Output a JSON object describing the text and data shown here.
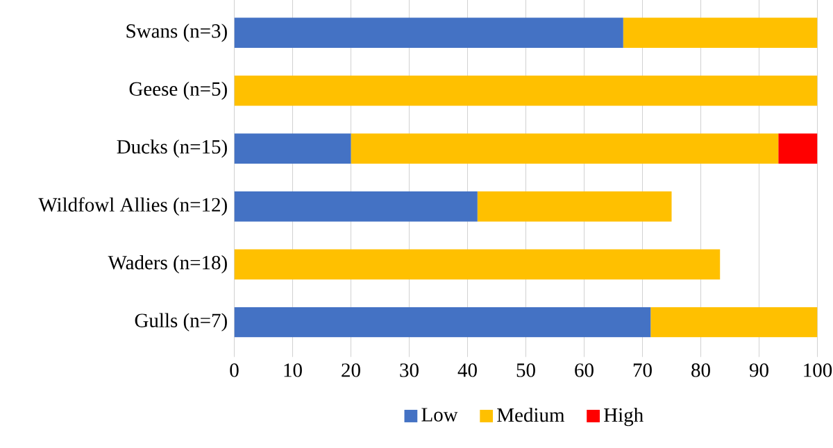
{
  "chart_data": {
    "type": "bar",
    "orientation": "horizontal",
    "stacked": true,
    "categories": [
      "Swans (n=3)",
      "Geese (n=5)",
      "Ducks (n=15)",
      "Wildfowl Allies (n=12)",
      "Waders (n=18)",
      "Gulls (n=7)"
    ],
    "series": [
      {
        "name": "Low",
        "color": "#4472c4",
        "values": [
          66.7,
          0,
          20,
          41.7,
          0,
          71.4
        ]
      },
      {
        "name": "Medium",
        "color": "#ffc000",
        "values": [
          33.3,
          100,
          73.3,
          33.3,
          83.3,
          28.6
        ]
      },
      {
        "name": "High",
        "color": "#ff0000",
        "values": [
          0,
          0,
          6.7,
          0,
          0,
          0
        ]
      }
    ],
    "xlim": [
      0,
      100
    ],
    "xticks": [
      0,
      10,
      20,
      30,
      40,
      50,
      60,
      70,
      80,
      90,
      100
    ],
    "grid": "x",
    "legend": "bottom"
  }
}
